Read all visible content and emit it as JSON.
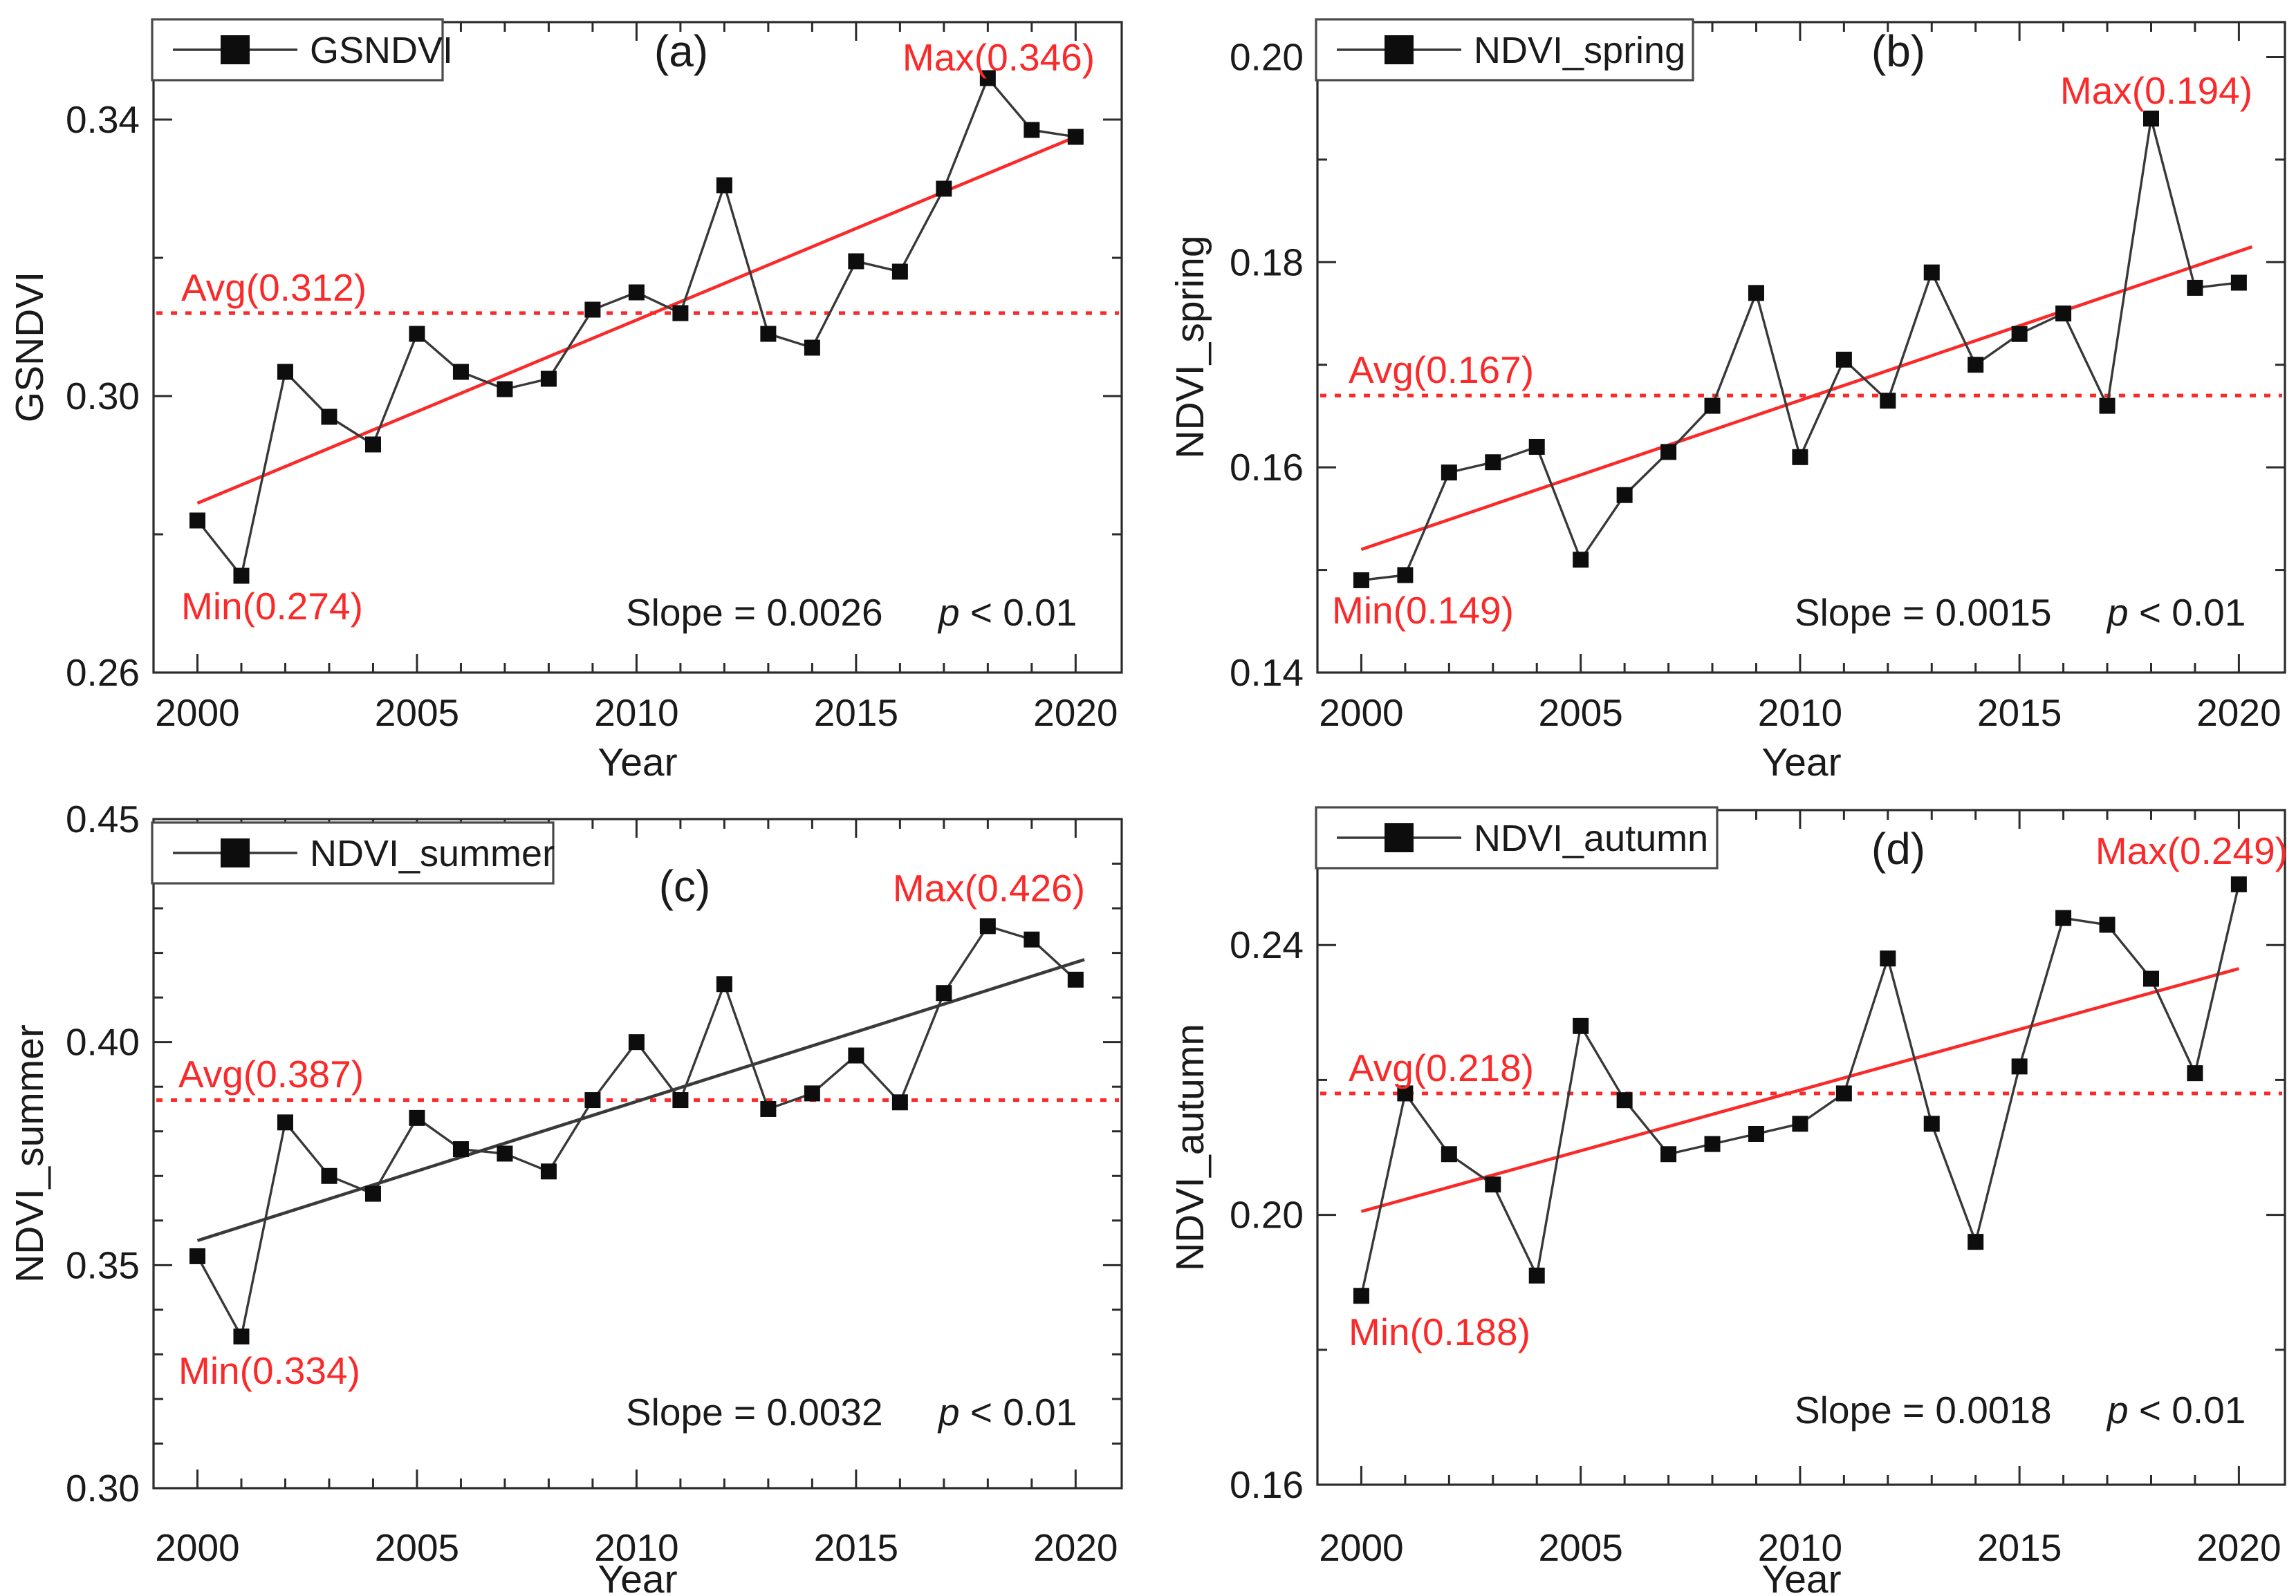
{
  "figure": {
    "background": "#ffffff"
  },
  "styles": {
    "red_accent": "#fa2a2a",
    "series_line_color": "#383838",
    "marker_color": "#0d0d0d",
    "frame_color": "#2b2b2b",
    "text_color": "#1a1a1a",
    "trend_dark_color": "#3a3a3a",
    "legend_border_color": "#4a4a4a",
    "legend_fill": "#ffffff"
  },
  "chart_data": [
    {
      "id": "a",
      "type": "line",
      "panel_letter": "(a)",
      "legend_label": "GSNDVI",
      "ylabel": "GSNDVI",
      "xlabel": "Year",
      "x_tick_labels": [
        "2000",
        "2005",
        "2010",
        "2015",
        "2020"
      ],
      "x_major_ticks": [
        2000,
        2005,
        2010,
        2015,
        2020
      ],
      "y_tick_labels": [
        "0.26",
        "0.30",
        "0.34"
      ],
      "y_major_ticks": [
        0.26,
        0.3,
        0.34
      ],
      "y_minor_ticks": [
        0.28,
        0.32
      ],
      "xlim": [
        1999,
        2021.05
      ],
      "ylim": [
        0.26,
        0.3541
      ],
      "years": [
        2000,
        2001,
        2002,
        2003,
        2004,
        2005,
        2006,
        2007,
        2008,
        2009,
        2010,
        2011,
        2012,
        2013,
        2014,
        2015,
        2016,
        2017,
        2018,
        2019,
        2020
      ],
      "values": [
        0.282,
        0.274,
        0.3035,
        0.297,
        0.293,
        0.309,
        0.3035,
        0.301,
        0.3025,
        0.3125,
        0.315,
        0.312,
        0.3305,
        0.309,
        0.307,
        0.3195,
        0.318,
        0.33,
        0.346,
        0.3385,
        0.3375
      ],
      "avg": {
        "value": 0.312,
        "label": "Avg(0.312)"
      },
      "min": {
        "value": 0.274,
        "label": "Min(0.274)"
      },
      "max": {
        "value": 0.346,
        "label": "Max(0.346)"
      },
      "slope_label": "Slope = 0.0026",
      "p_label": "p < 0.01",
      "trend": {
        "x1": 2000,
        "y1": 0.2845,
        "x2": 2020,
        "y2": 0.3375,
        "color": "red"
      }
    },
    {
      "id": "b",
      "type": "line",
      "panel_letter": "(b)",
      "legend_label": "NDVI_spring",
      "ylabel": "NDVI_spring",
      "xlabel": "Year",
      "x_tick_labels": [
        "2000",
        "2005",
        "2010",
        "2015",
        "2020"
      ],
      "x_major_ticks": [
        2000,
        2005,
        2010,
        2015,
        2020
      ],
      "y_tick_labels": [
        "0.14",
        "0.16",
        "0.18",
        "0.20"
      ],
      "y_major_ticks": [
        0.14,
        0.16,
        0.18,
        0.2
      ],
      "y_minor_ticks": [
        0.15,
        0.17,
        0.19
      ],
      "xlim": [
        1999,
        2021.05
      ],
      "ylim": [
        0.14,
        0.2034
      ],
      "years": [
        2000,
        2001,
        2002,
        2003,
        2004,
        2005,
        2006,
        2007,
        2008,
        2009,
        2010,
        2011,
        2012,
        2013,
        2014,
        2015,
        2016,
        2017,
        2018,
        2019,
        2020
      ],
      "values": [
        0.149,
        0.1495,
        0.1595,
        0.1605,
        0.162,
        0.151,
        0.1573,
        0.1615,
        0.166,
        0.177,
        0.161,
        0.1705,
        0.1665,
        0.179,
        0.17,
        0.173,
        0.175,
        0.166,
        0.194,
        0.1775,
        0.178
      ],
      "avg": {
        "value": 0.167,
        "label": "Avg(0.167)"
      },
      "min": {
        "value": 0.149,
        "label": "Min(0.149)"
      },
      "max": {
        "value": 0.194,
        "label": "Max(0.194)"
      },
      "slope_label": "Slope = 0.0015",
      "p_label": "p < 0.01",
      "trend": {
        "x1": 2000,
        "y1": 0.152,
        "x2": 2020.3,
        "y2": 0.1815,
        "color": "red"
      }
    },
    {
      "id": "c",
      "type": "line",
      "panel_letter": "(c)",
      "legend_label": "NDVI_summer",
      "ylabel": "NDVI_summer",
      "xlabel": "Year",
      "x_tick_labels": [
        "2000",
        "2005",
        "2010",
        "2015",
        "2020"
      ],
      "x_major_ticks": [
        2000,
        2005,
        2010,
        2015,
        2020
      ],
      "y_tick_labels": [
        "0.30",
        "0.35",
        "0.40",
        "0.45"
      ],
      "y_major_ticks": [
        0.3,
        0.35,
        0.4,
        0.45
      ],
      "y_minor_ticks": [
        0.31,
        0.32,
        0.33,
        0.34,
        0.36,
        0.37,
        0.38,
        0.39,
        0.41,
        0.42,
        0.43,
        0.44
      ],
      "xlim": [
        1999,
        2021.05
      ],
      "ylim": [
        0.3,
        0.45
      ],
      "years": [
        2000,
        2001,
        2002,
        2003,
        2004,
        2005,
        2006,
        2007,
        2008,
        2009,
        2010,
        2011,
        2012,
        2013,
        2014,
        2015,
        2016,
        2017,
        2018,
        2019,
        2020
      ],
      "values": [
        0.352,
        0.334,
        0.382,
        0.37,
        0.366,
        0.383,
        0.376,
        0.375,
        0.371,
        0.387,
        0.4,
        0.387,
        0.413,
        0.385,
        0.3885,
        0.397,
        0.3865,
        0.411,
        0.426,
        0.423,
        0.414
      ],
      "avg": {
        "value": 0.387,
        "label": "Avg(0.387)"
      },
      "min": {
        "value": 0.334,
        "label": "Min(0.334)"
      },
      "max": {
        "value": 0.426,
        "label": "Max(0.426)"
      },
      "slope_label": "Slope = 0.0032",
      "p_label": "p < 0.01",
      "trend": {
        "x1": 2000,
        "y1": 0.3555,
        "x2": 2020.2,
        "y2": 0.4185,
        "color": "dark"
      }
    },
    {
      "id": "d",
      "type": "line",
      "panel_letter": "(d)",
      "legend_label": "NDVI_autumn",
      "ylabel": "NDVI_autumn",
      "xlabel": "Year",
      "x_tick_labels": [
        "2000",
        "2005",
        "2010",
        "2015",
        "2020"
      ],
      "x_major_ticks": [
        2000,
        2005,
        2010,
        2015,
        2020
      ],
      "y_tick_labels": [
        "0.16",
        "0.20",
        "0.24"
      ],
      "y_major_ticks": [
        0.16,
        0.2,
        0.24
      ],
      "y_minor_ticks": [
        0.18,
        0.22
      ],
      "xlim": [
        1999,
        2021.05
      ],
      "ylim": [
        0.16,
        0.26
      ],
      "years": [
        2000,
        2001,
        2002,
        2003,
        2004,
        2005,
        2006,
        2007,
        2008,
        2009,
        2010,
        2011,
        2012,
        2013,
        2014,
        2015,
        2016,
        2017,
        2018,
        2019,
        2020
      ],
      "values": [
        0.188,
        0.218,
        0.209,
        0.2045,
        0.191,
        0.228,
        0.217,
        0.209,
        0.2105,
        0.212,
        0.2135,
        0.218,
        0.238,
        0.2135,
        0.196,
        0.222,
        0.244,
        0.243,
        0.235,
        0.221,
        0.249
      ],
      "avg": {
        "value": 0.218,
        "label": "Avg(0.218)"
      },
      "min": {
        "value": 0.188,
        "label": "Min(0.188)"
      },
      "max": {
        "value": 0.249,
        "label": "Max(0.249)"
      },
      "slope_label": "Slope = 0.0018",
      "p_label": "p < 0.01",
      "trend": {
        "x1": 2000,
        "y1": 0.2005,
        "x2": 2020,
        "y2": 0.2365,
        "color": "red"
      }
    }
  ]
}
